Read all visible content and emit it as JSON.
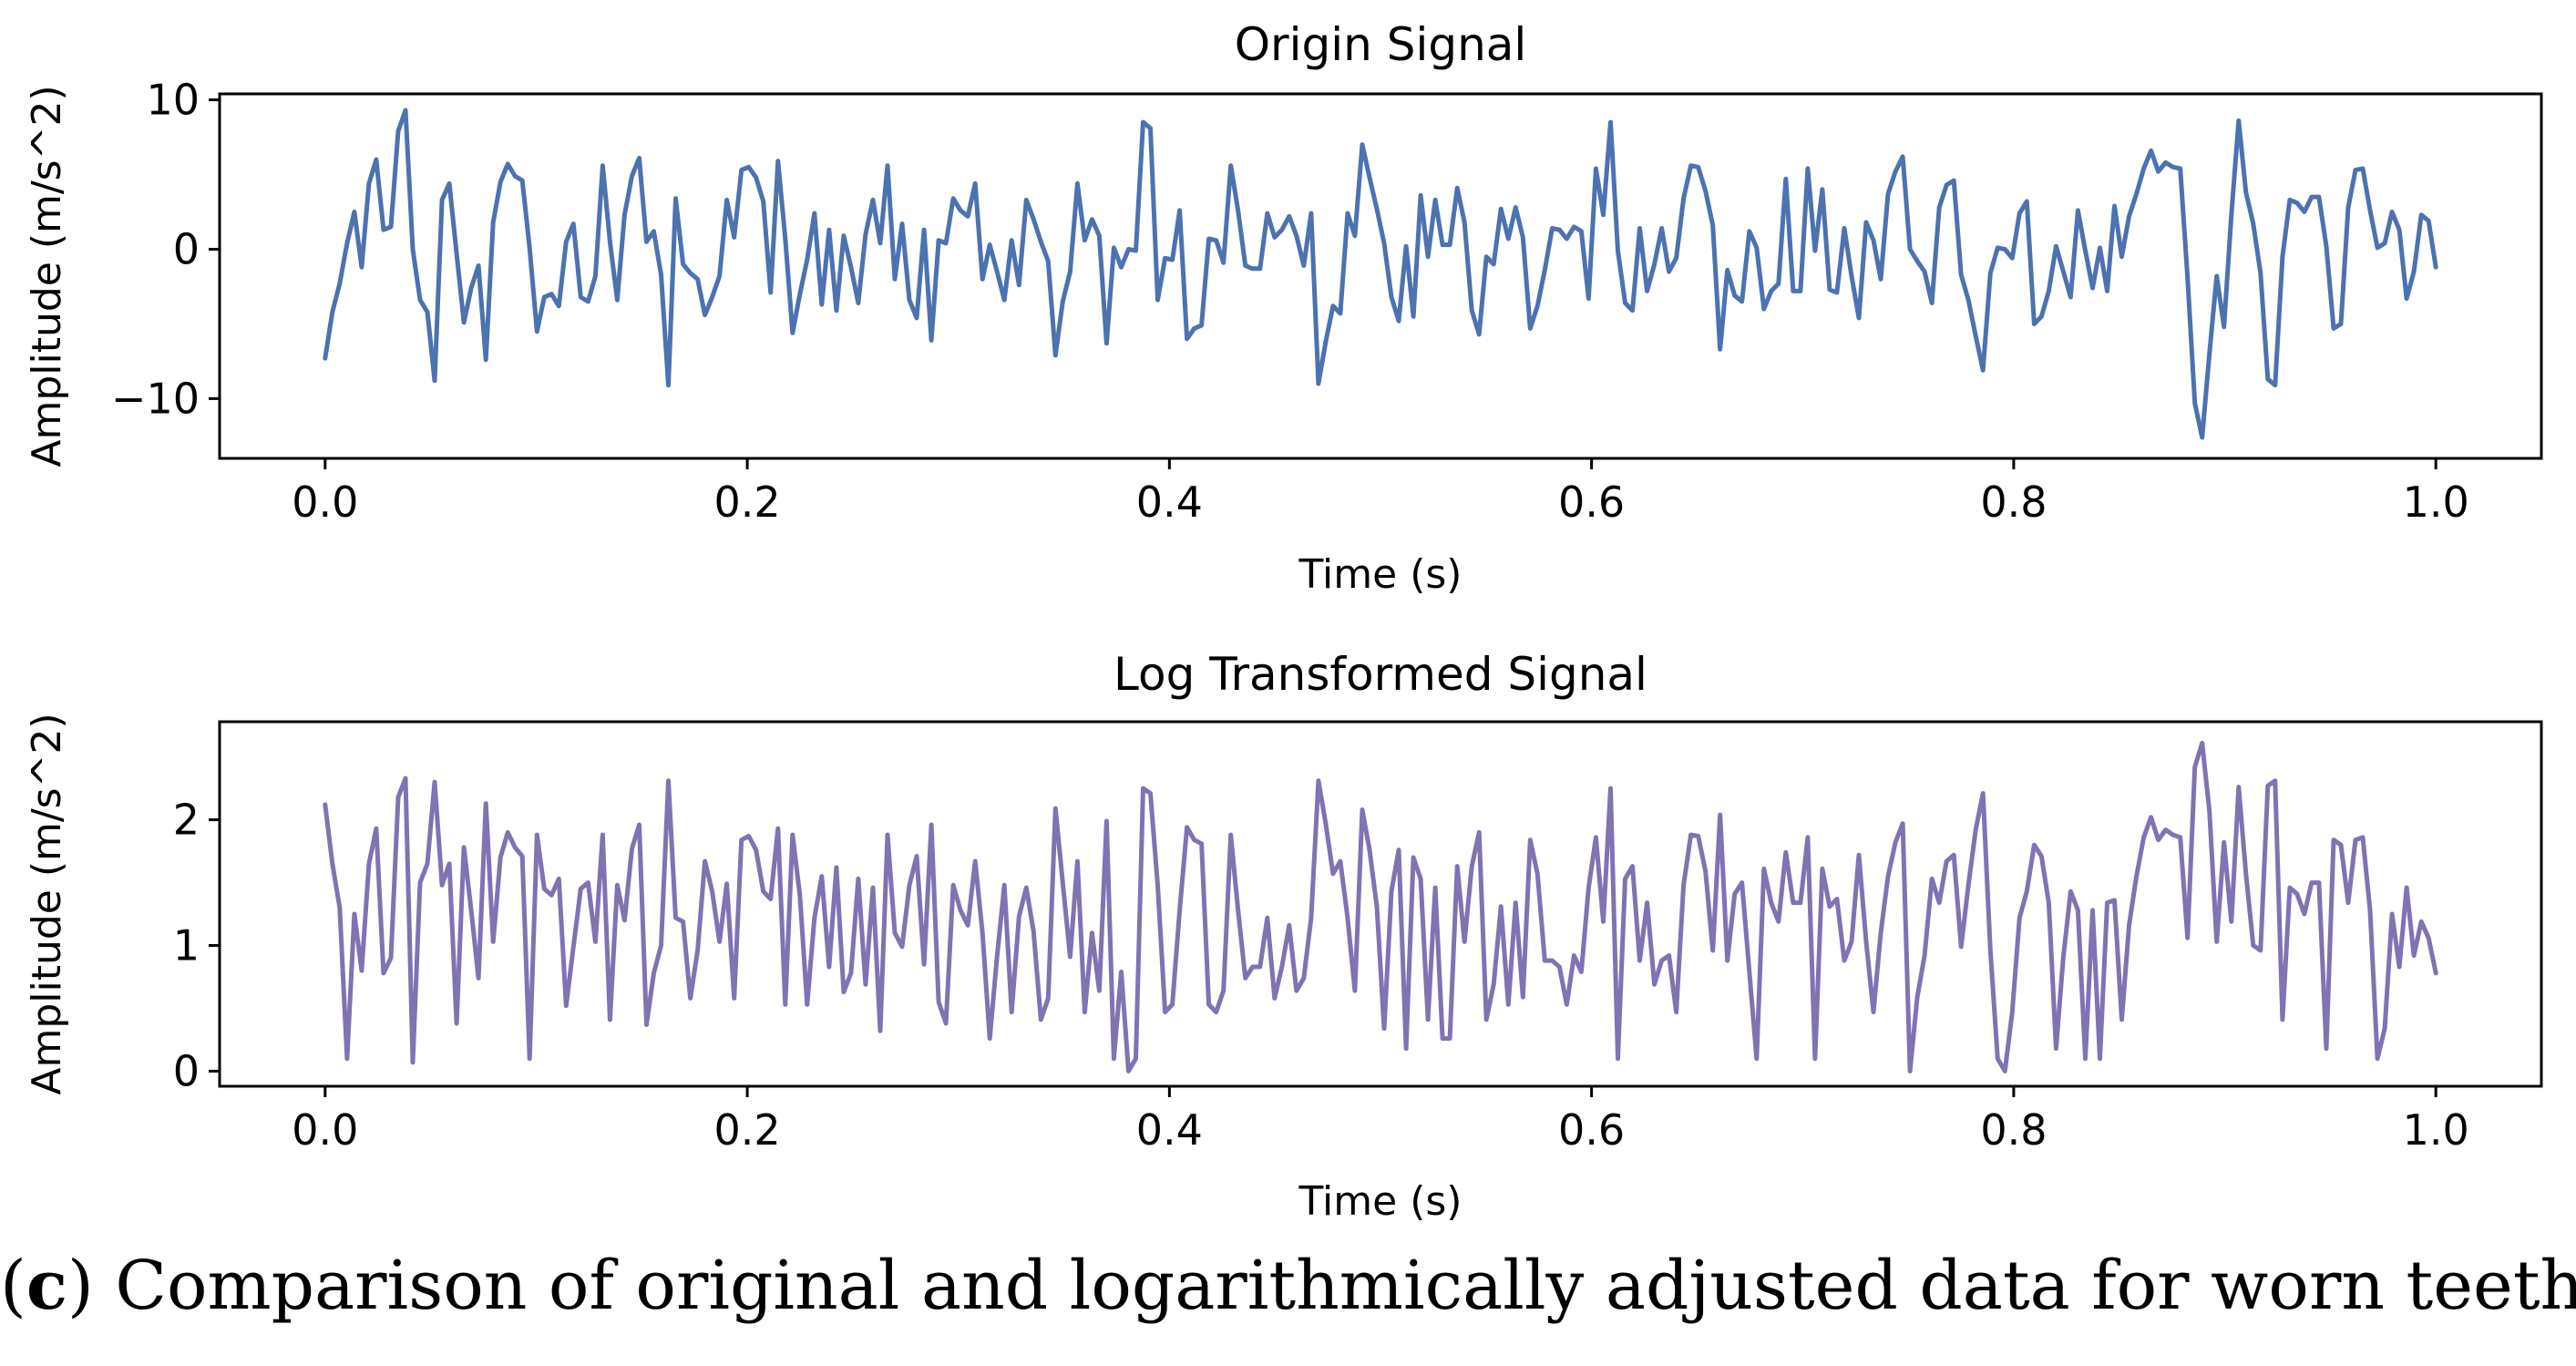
{
  "caption": {
    "label": "c",
    "text": "Comparison of original and logarithmically adjusted data for worn teeth"
  },
  "chart_data": [
    {
      "type": "line",
      "title": "Origin Signal",
      "xlabel": "Time (s)",
      "ylabel": "Amplitude (m/s^2)",
      "color": "#4c72b0",
      "xlim": [
        -0.05,
        1.05
      ],
      "ylim": [
        -14,
        10.4
      ],
      "xticks": [
        0.0,
        0.2,
        0.4,
        0.6,
        0.8,
        1.0
      ],
      "xtick_labels": [
        "0.0",
        "0.2",
        "0.4",
        "0.6",
        "0.8",
        "1.0"
      ],
      "yticks": [
        -10,
        0,
        10
      ],
      "ytick_labels": [
        "−10",
        "0",
        "10"
      ],
      "x_start": 0.0,
      "x_end": 1.0,
      "series": [
        {
          "values": [
            -7.3,
            -4.2,
            -2.3,
            0.4,
            2.5,
            -1.2,
            4.4,
            6.0,
            1.3,
            1.5,
            7.9,
            9.3,
            0.0,
            -3.4,
            -4.2,
            -8.8,
            3.3,
            4.4,
            -0.3,
            -4.9,
            -2.6,
            -1.1,
            -7.4,
            1.8,
            4.5,
            5.7,
            4.9,
            4.6,
            0.1,
            -5.5,
            -3.2,
            -3.0,
            -3.8,
            0.5,
            1.7,
            -3.2,
            -3.5,
            -1.8,
            5.6,
            0.5,
            -3.4,
            2.3,
            4.9,
            6.1,
            0.5,
            1.2,
            -1.7,
            -9.1,
            3.4,
            -1.0,
            -1.6,
            -2.0,
            -4.4,
            -3.2,
            -1.8,
            3.3,
            0.8,
            5.3,
            5.5,
            4.8,
            3.2,
            -2.9,
            5.9,
            0.7,
            -5.6,
            -3.0,
            -0.7,
            2.4,
            -3.7,
            1.3,
            -4.1,
            0.9,
            -1.2,
            -3.6,
            1.0,
            3.3,
            0.4,
            5.6,
            -2.0,
            1.7,
            -3.4,
            -4.6,
            1.3,
            -6.1,
            0.6,
            0.4,
            3.4,
            2.6,
            2.2,
            4.4,
            -2.0,
            0.3,
            -1.5,
            -3.4,
            0.6,
            -2.4,
            3.3,
            2.0,
            0.5,
            -0.8,
            -7.1,
            -3.5,
            -1.5,
            4.4,
            0.6,
            2.0,
            0.9,
            -6.3,
            0.1,
            -1.2,
            0.0,
            -0.1,
            8.5,
            8.1,
            -3.4,
            -0.6,
            -0.7,
            2.6,
            -6.0,
            -5.3,
            -5.1,
            0.7,
            0.6,
            -0.9,
            5.6,
            2.6,
            -1.1,
            -1.3,
            -1.3,
            2.4,
            0.8,
            1.3,
            2.2,
            0.9,
            -1.1,
            2.4,
            -9.0,
            -6.2,
            -3.8,
            -4.3,
            2.4,
            0.9,
            7.0,
            4.8,
            2.7,
            0.4,
            -3.2,
            -4.8,
            0.2,
            -4.5,
            3.6,
            -0.5,
            3.3,
            0.3,
            0.3,
            4.1,
            1.8,
            -4.1,
            -5.7,
            -0.5,
            -1.0,
            2.7,
            0.7,
            2.8,
            0.8,
            -5.3,
            -3.8,
            -1.4,
            1.4,
            1.3,
            0.7,
            1.5,
            1.2,
            -3.3,
            5.4,
            2.3,
            8.5,
            -0.1,
            -3.6,
            -4.1,
            1.4,
            -2.8,
            -1.0,
            1.4,
            -1.5,
            -0.6,
            3.4,
            5.6,
            5.5,
            3.9,
            1.6,
            -6.7,
            -1.4,
            -3.1,
            -3.5,
            1.2,
            0.1,
            -4.0,
            -2.8,
            -2.3,
            4.7,
            -2.8,
            -2.8,
            5.4,
            -0.1,
            4.0,
            -2.7,
            -2.9,
            1.4,
            -1.8,
            -4.6,
            1.8,
            0.6,
            -2.0,
            3.7,
            5.2,
            6.2,
            0.0,
            -0.8,
            -1.5,
            -3.6,
            2.8,
            4.3,
            4.6,
            -1.7,
            -3.4,
            -5.8,
            -8.1,
            -1.6,
            0.1,
            0.0,
            -0.6,
            2.4,
            3.2,
            -5.0,
            -4.5,
            -2.8,
            0.2,
            -1.5,
            -3.2,
            2.6,
            -0.1,
            -2.6,
            0.1,
            -2.8,
            2.9,
            -0.5,
            2.2,
            3.7,
            5.4,
            6.6,
            5.2,
            5.8,
            5.5,
            5.4,
            -1.9,
            -10.3,
            -12.6,
            -7.0,
            -1.8,
            -5.2,
            2.3,
            8.6,
            3.8,
            1.7,
            -1.6,
            -8.7,
            -9.1,
            -0.5,
            3.3,
            3.1,
            2.5,
            3.5,
            3.5,
            0.2,
            -5.3,
            -5.0,
            2.8,
            5.3,
            5.4,
            2.6,
            0.1,
            0.4,
            2.5,
            1.3,
            -3.3,
            -1.5,
            2.3,
            1.9,
            -1.2
          ]
        }
      ]
    },
    {
      "type": "line",
      "title": "Log Transformed Signal",
      "xlabel": "Time (s)",
      "ylabel": "Amplitude (m/s^2)",
      "color": "#8172b3",
      "xlim": [
        -0.05,
        1.05
      ],
      "ylim": [
        -0.12,
        2.78
      ],
      "xticks": [
        0.0,
        0.2,
        0.4,
        0.6,
        0.8,
        1.0
      ],
      "xtick_labels": [
        "0.0",
        "0.2",
        "0.4",
        "0.6",
        "0.8",
        "1.0"
      ],
      "yticks": [
        0,
        1,
        2
      ],
      "ytick_labels": [
        "0",
        "1",
        "2"
      ],
      "x_start": 0.0,
      "x_end": 1.0,
      "series": [
        {
          "values": [
            2.12,
            1.65,
            1.3,
            0.1,
            1.25,
            0.8,
            1.65,
            1.93,
            0.78,
            0.9,
            2.18,
            2.33,
            0.07,
            1.5,
            1.65,
            2.3,
            1.48,
            1.65,
            0.38,
            1.78,
            1.28,
            0.74,
            2.13,
            1.03,
            1.7,
            1.9,
            1.78,
            1.71,
            0.1,
            1.88,
            1.45,
            1.4,
            1.53,
            0.52,
            0.99,
            1.45,
            1.5,
            1.03,
            1.88,
            0.41,
            1.48,
            1.2,
            1.77,
            1.96,
            0.37,
            0.78,
            1.0,
            2.31,
            1.22,
            1.19,
            0.58,
            0.96,
            1.67,
            1.43,
            1.03,
            1.49,
            0.58,
            1.84,
            1.87,
            1.76,
            1.43,
            1.37,
            1.93,
            0.53,
            1.88,
            1.4,
            0.53,
            1.22,
            1.55,
            0.83,
            1.62,
            0.63,
            0.78,
            1.53,
            0.69,
            1.46,
            0.32,
            1.88,
            1.1,
            0.99,
            1.48,
            1.71,
            0.85,
            1.96,
            0.55,
            0.38,
            1.48,
            1.28,
            1.16,
            1.67,
            1.1,
            0.26,
            0.91,
            1.48,
            0.47,
            1.23,
            1.46,
            1.11,
            0.41,
            0.58,
            2.09,
            1.5,
            0.91,
            1.67,
            0.47,
            1.1,
            0.64,
            1.99,
            0.1,
            0.79,
            0.0,
            0.1,
            2.25,
            2.21,
            1.48,
            0.47,
            0.53,
            1.28,
            1.94,
            1.84,
            1.81,
            0.53,
            0.47,
            0.64,
            1.88,
            1.28,
            0.74,
            0.83,
            0.83,
            1.22,
            0.58,
            0.83,
            1.16,
            0.64,
            0.74,
            1.22,
            2.31,
            1.97,
            1.57,
            1.67,
            1.22,
            0.64,
            2.08,
            1.76,
            1.31,
            0.34,
            1.43,
            1.76,
            0.18,
            1.7,
            1.53,
            0.41,
            1.46,
            0.26,
            0.26,
            1.63,
            1.03,
            1.63,
            1.9,
            0.41,
            0.69,
            1.31,
            0.53,
            1.34,
            0.59,
            1.84,
            1.57,
            0.88,
            0.88,
            0.83,
            0.53,
            0.92,
            0.79,
            1.46,
            1.86,
            1.19,
            2.25,
            0.1,
            1.53,
            1.63,
            0.88,
            1.34,
            0.69,
            0.88,
            0.92,
            0.47,
            1.48,
            1.88,
            1.87,
            1.59,
            0.96,
            2.04,
            0.88,
            1.41,
            1.5,
            0.79,
            0.1,
            1.61,
            1.34,
            1.19,
            1.74,
            1.34,
            1.34,
            1.86,
            0.1,
            1.61,
            1.31,
            1.37,
            0.88,
            1.03,
            1.72,
            1.03,
            0.47,
            1.1,
            1.55,
            1.82,
            1.97,
            0.0,
            0.59,
            0.92,
            1.53,
            1.34,
            1.67,
            1.72,
            0.99,
            1.48,
            1.92,
            2.21,
            0.96,
            0.1,
            0.0,
            0.47,
            1.22,
            1.43,
            1.8,
            1.71,
            1.34,
            0.18,
            0.91,
            1.43,
            1.28,
            0.1,
            1.28,
            0.1,
            1.34,
            1.36,
            0.41,
            1.16,
            1.55,
            1.86,
            2.02,
            1.84,
            1.92,
            1.88,
            1.86,
            1.06,
            2.42,
            2.61,
            2.07,
            1.03,
            1.82,
            1.19,
            2.26,
            1.57,
            1.0,
            0.96,
            2.27,
            2.31,
            0.41,
            1.46,
            1.41,
            1.25,
            1.5,
            1.5,
            0.18,
            1.84,
            1.8,
            1.34,
            1.84,
            1.86,
            1.28,
            0.1,
            0.34,
            1.25,
            0.83,
            1.46,
            0.92,
            1.19,
            1.06,
            0.78
          ]
        }
      ]
    }
  ]
}
